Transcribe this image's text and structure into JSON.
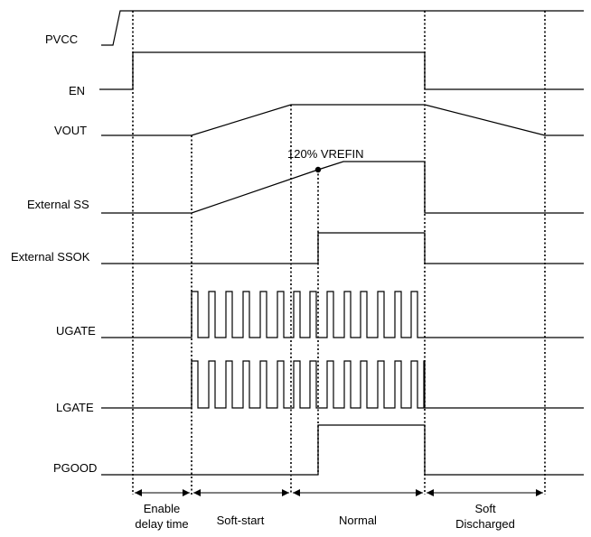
{
  "signals": [
    {
      "id": "pvcc",
      "label": "PVCC"
    },
    {
      "id": "en",
      "label": "EN"
    },
    {
      "id": "vout",
      "label": "VOUT"
    },
    {
      "id": "ext-ss",
      "label": "External SS"
    },
    {
      "id": "ext-ssok",
      "label": "External SSOK"
    },
    {
      "id": "ugate",
      "label": "UGATE"
    },
    {
      "id": "lgate",
      "label": "LGATE"
    },
    {
      "id": "pgood",
      "label": "PGOOD"
    }
  ],
  "annotation": {
    "label": "120% VREFIN"
  },
  "phases": [
    {
      "id": "enable-delay",
      "line1": "Enable",
      "line2": "delay time"
    },
    {
      "id": "soft-start",
      "line1": "Soft-start",
      "line2": ""
    },
    {
      "id": "normal",
      "line1": "Normal",
      "line2": ""
    },
    {
      "id": "soft-discharged",
      "line1": "Soft",
      "line2": "Discharged"
    }
  ]
}
